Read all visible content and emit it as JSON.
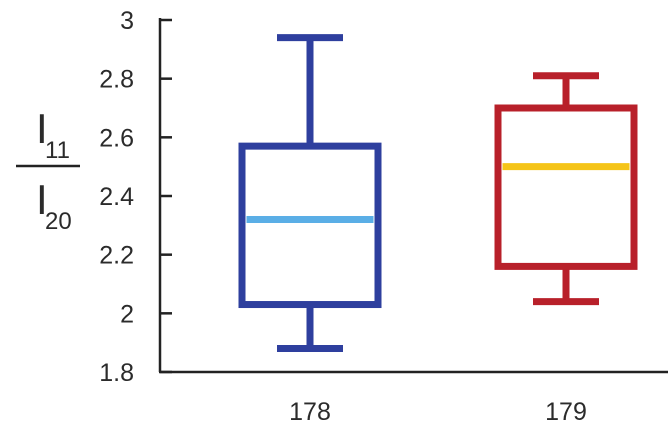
{
  "chart_data": {
    "type": "box",
    "title": "",
    "xlabel": "",
    "ylabel": {
      "top_letter": "I",
      "top_sub": "11",
      "bottom_letter": "I",
      "bottom_sub": "20"
    },
    "ylim": [
      1.8,
      3.0
    ],
    "yticks": [
      {
        "value": 1.8,
        "label": "1.8"
      },
      {
        "value": 2.0,
        "label": "2"
      },
      {
        "value": 2.2,
        "label": "2.2"
      },
      {
        "value": 2.4,
        "label": "2.4"
      },
      {
        "value": 2.6,
        "label": "2.6"
      },
      {
        "value": 2.8,
        "label": "2.8"
      },
      {
        "value": 3.0,
        "label": "3"
      }
    ],
    "categories": [
      "178",
      "179"
    ],
    "boxes": [
      {
        "category": "178",
        "whisker_low": 1.88,
        "q1": 2.03,
        "median": 2.32,
        "q3": 2.57,
        "whisker_high": 2.94,
        "box_color": "#2e3f9e",
        "median_color": "#5aaee6"
      },
      {
        "category": "179",
        "whisker_low": 2.04,
        "q1": 2.16,
        "median": 2.5,
        "q3": 2.7,
        "whisker_high": 2.81,
        "box_color": "#b8202a",
        "median_color": "#f5c418"
      }
    ],
    "grid": false,
    "legend": "none",
    "axis_color": "#222222"
  }
}
